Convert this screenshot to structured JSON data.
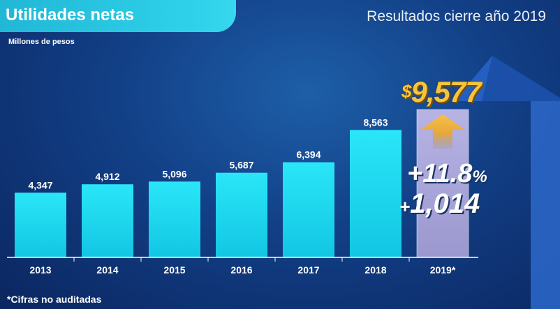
{
  "header": {
    "title": "Utilidades netas",
    "right_text": "Resultados cierre año 2019"
  },
  "footnote": "*Cifras no auditadas",
  "highlight": {
    "currency": "$",
    "total": "9,577",
    "growth_pct_number": "+11.8",
    "growth_pct_sign": "%",
    "growth_abs_sign": "+",
    "growth_abs": "1,014"
  },
  "colors": {
    "bar": "#1fd8ee",
    "highlight_bar": "#a9a6da",
    "arrow": "#f2b53d",
    "background_arrow": "#1f56b4"
  },
  "chart_data": {
    "type": "bar",
    "title": "",
    "ylabel": "Millones de pesos",
    "xlabel": "",
    "categories": [
      "2013",
      "2014",
      "2015",
      "2016",
      "2017",
      "2018",
      "2019*"
    ],
    "values": [
      4347,
      4912,
      5096,
      5687,
      6394,
      8563,
      9577
    ],
    "data_labels": [
      "4,347",
      "4,912",
      "5,096",
      "5,687",
      "6,394",
      "8,563",
      ""
    ],
    "ylim": [
      0,
      12000
    ],
    "grid": false,
    "legend": "none"
  }
}
